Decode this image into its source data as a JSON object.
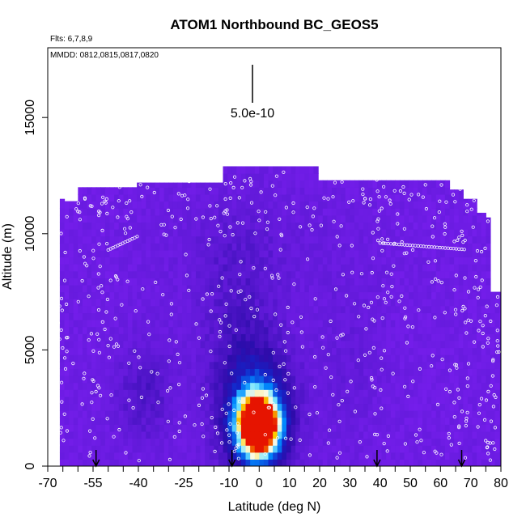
{
  "chart_data": {
    "type": "heatmap",
    "title": "ATOM1 Northbound BC_GEOS5",
    "annotations": {
      "flights": "Flts: 6,7,8,9",
      "dates": "MMDD: 0812,0815,0817,0820",
      "scale_label": "5.0e-10"
    },
    "xlabel": "Latitude (deg N)",
    "ylabel": "Altitude (m)",
    "xlim": [
      -70,
      80
    ],
    "ylim": [
      0,
      18000
    ],
    "x_ticks": [
      -70,
      -65,
      -60,
      -55,
      -50,
      -45,
      -40,
      -35,
      -30,
      -25,
      -20,
      -15,
      -10,
      -5,
      0,
      5,
      10,
      15,
      20,
      25,
      30,
      35,
      40,
      45,
      50,
      55,
      60,
      65,
      70,
      75,
      80
    ],
    "x_tick_labels": [
      "-70",
      "-55",
      "-40",
      "-25",
      "-10",
      "0",
      "10",
      "20",
      "30",
      "40",
      "50",
      "60",
      "70",
      "80"
    ],
    "x_tick_label_values": [
      -70,
      -55,
      -40,
      -25,
      -10,
      0,
      10,
      20,
      30,
      40,
      50,
      60,
      70,
      80
    ],
    "y_ticks": [
      0,
      5000,
      10000,
      15000
    ],
    "y_tick_labels": [
      "0",
      "5000",
      "10000",
      "15000"
    ],
    "colors": {
      "background_field": "#7a1ff0",
      "low": "#1a10b0",
      "mid": "#00b4ff",
      "high": "#ff2000",
      "profile_marker": "#ffffff"
    },
    "max_concentration_latitude": 0,
    "max_concentration_altitude": 1700,
    "profile_latitudes": [
      -54,
      -9,
      39,
      67
    ]
  }
}
